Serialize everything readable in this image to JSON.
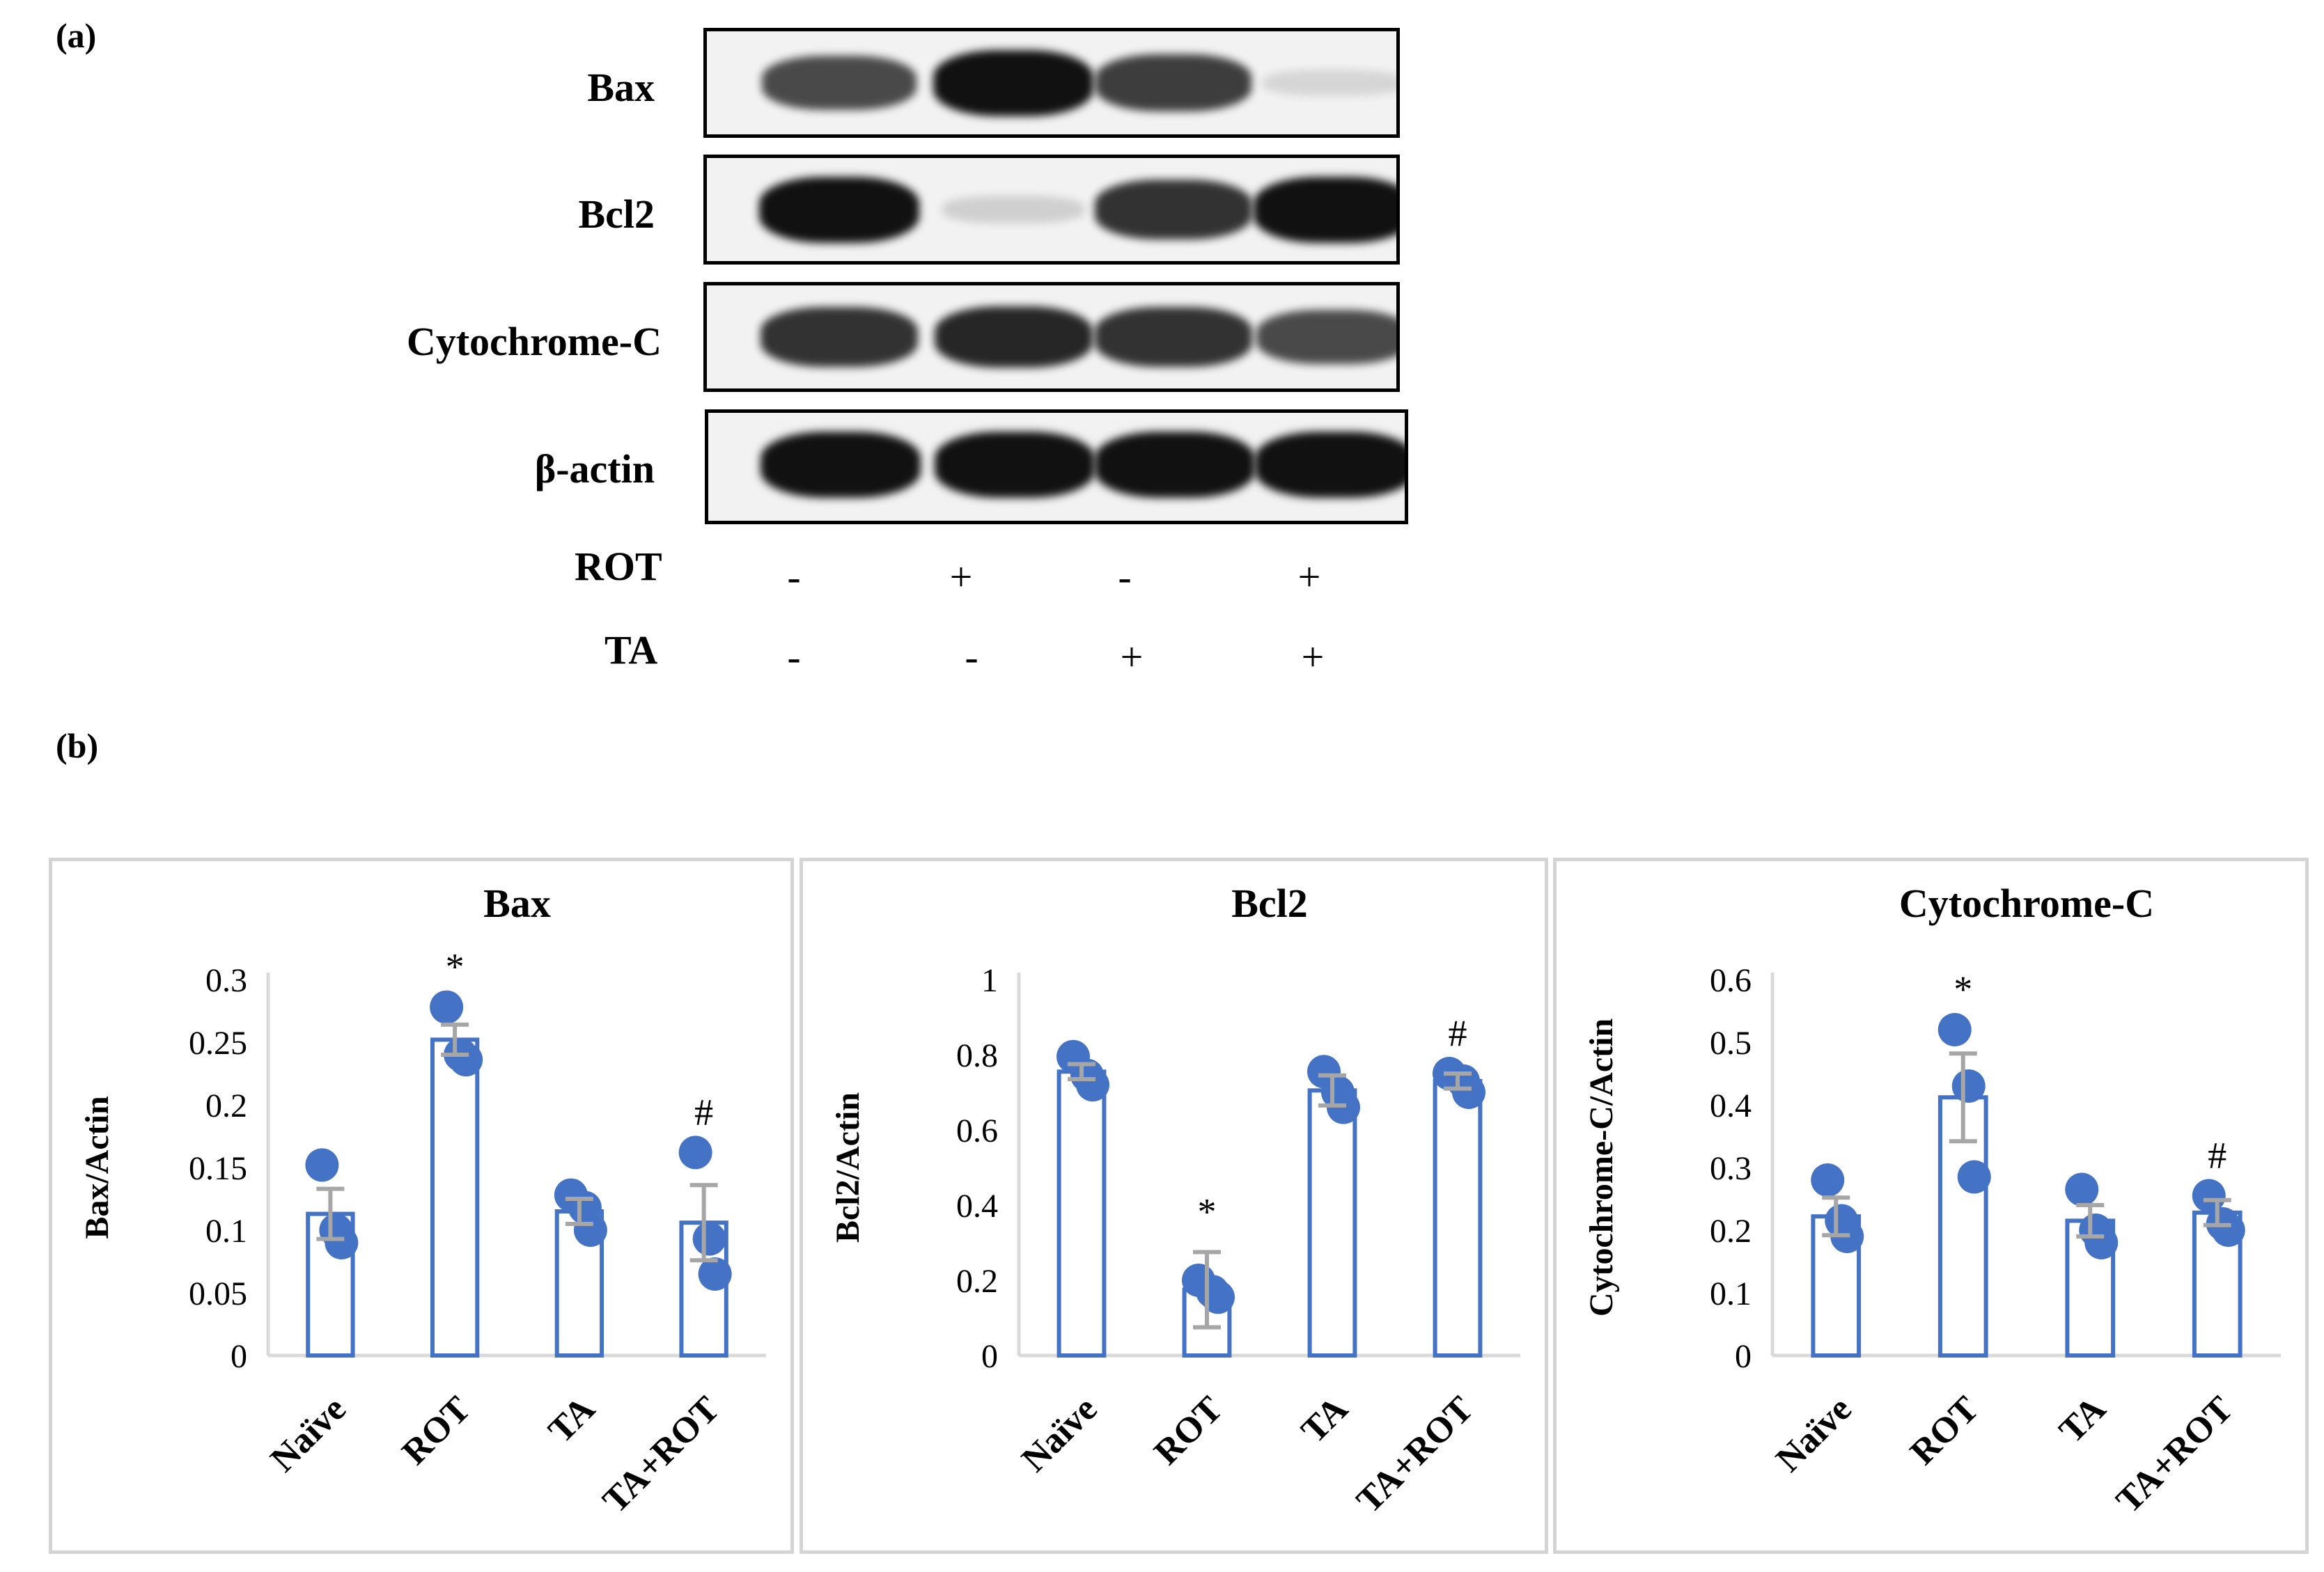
{
  "panel_a_label": "(a)",
  "panel_b_label": "(b)",
  "blots": [
    {
      "label": "Bax",
      "bands": [
        0.75,
        1.0,
        0.8,
        0.12
      ]
    },
    {
      "label": "Bcl2",
      "bands": [
        1.0,
        0.15,
        0.85,
        1.0
      ]
    },
    {
      "label": "Cytochrome-C",
      "bands": [
        0.85,
        0.9,
        0.85,
        0.75
      ]
    },
    {
      "label": "β-actin",
      "bands": [
        1.0,
        1.0,
        1.0,
        1.0
      ]
    }
  ],
  "treatments": [
    {
      "label": "ROT",
      "signs": [
        "-",
        "+",
        "-",
        "+"
      ]
    },
    {
      "label": "TA",
      "signs": [
        "-",
        "-",
        "+",
        "+"
      ]
    }
  ],
  "colors": {
    "bar_edge": "#4472c4",
    "point": "#4472c4",
    "error": "#a6a6a6",
    "axis": "#d9d9d9"
  },
  "chart_data": [
    {
      "type": "bar",
      "title": "Bax",
      "ylabel": "Bax/Actin",
      "categories": [
        "Naïve",
        "ROT",
        "TA",
        "TA+ROT"
      ],
      "values": [
        0.113,
        0.252,
        0.115,
        0.106
      ],
      "errors": [
        0.02,
        0.012,
        0.01,
        0.03
      ],
      "points": [
        [
          0.152,
          0.1,
          0.09
        ],
        [
          0.278,
          0.24,
          0.236
        ],
        [
          0.128,
          0.118,
          0.1
        ],
        [
          0.162,
          0.093,
          0.065
        ]
      ],
      "markers": [
        "",
        "*",
        "",
        "#"
      ],
      "yticks": [
        "0",
        "0.05",
        "0.1",
        "0.15",
        "0.2",
        "0.25",
        "0.3"
      ],
      "ylim": [
        0,
        0.3
      ]
    },
    {
      "type": "bar",
      "title": "Bcl2",
      "ylabel": "Bcl2/Actin",
      "categories": [
        "Naïve",
        "ROT",
        "TA",
        "TA+ROT"
      ],
      "values": [
        0.755,
        0.175,
        0.705,
        0.73
      ],
      "errors": [
        0.02,
        0.1,
        0.04,
        0.02
      ],
      "points": [
        [
          0.795,
          0.745,
          0.72
        ],
        [
          0.2,
          0.17,
          0.155
        ],
        [
          0.755,
          0.7,
          0.66
        ],
        [
          0.75,
          0.73,
          0.7
        ]
      ],
      "markers": [
        "",
        "*",
        "",
        "#"
      ],
      "yticks": [
        "0",
        "0.2",
        "0.4",
        "0.6",
        "0.8",
        "1"
      ],
      "ylim": [
        0,
        1
      ]
    },
    {
      "type": "bar",
      "title": "Cytochrome-C",
      "ylabel": "Cytochrome-C/Actin",
      "categories": [
        "Naïve",
        "ROT",
        "TA",
        "TA+ROT"
      ],
      "values": [
        0.222,
        0.412,
        0.215,
        0.228
      ],
      "errors": [
        0.03,
        0.07,
        0.025,
        0.02
      ],
      "points": [
        [
          0.28,
          0.215,
          0.19
        ],
        [
          0.52,
          0.43,
          0.285
        ],
        [
          0.265,
          0.2,
          0.18
        ],
        [
          0.255,
          0.21,
          0.2
        ]
      ],
      "markers": [
        "",
        "*",
        "",
        "#"
      ],
      "yticks": [
        "0",
        "0.1",
        "0.2",
        "0.3",
        "0.4",
        "0.5",
        "0.6"
      ],
      "ylim": [
        0,
        0.6
      ]
    }
  ]
}
